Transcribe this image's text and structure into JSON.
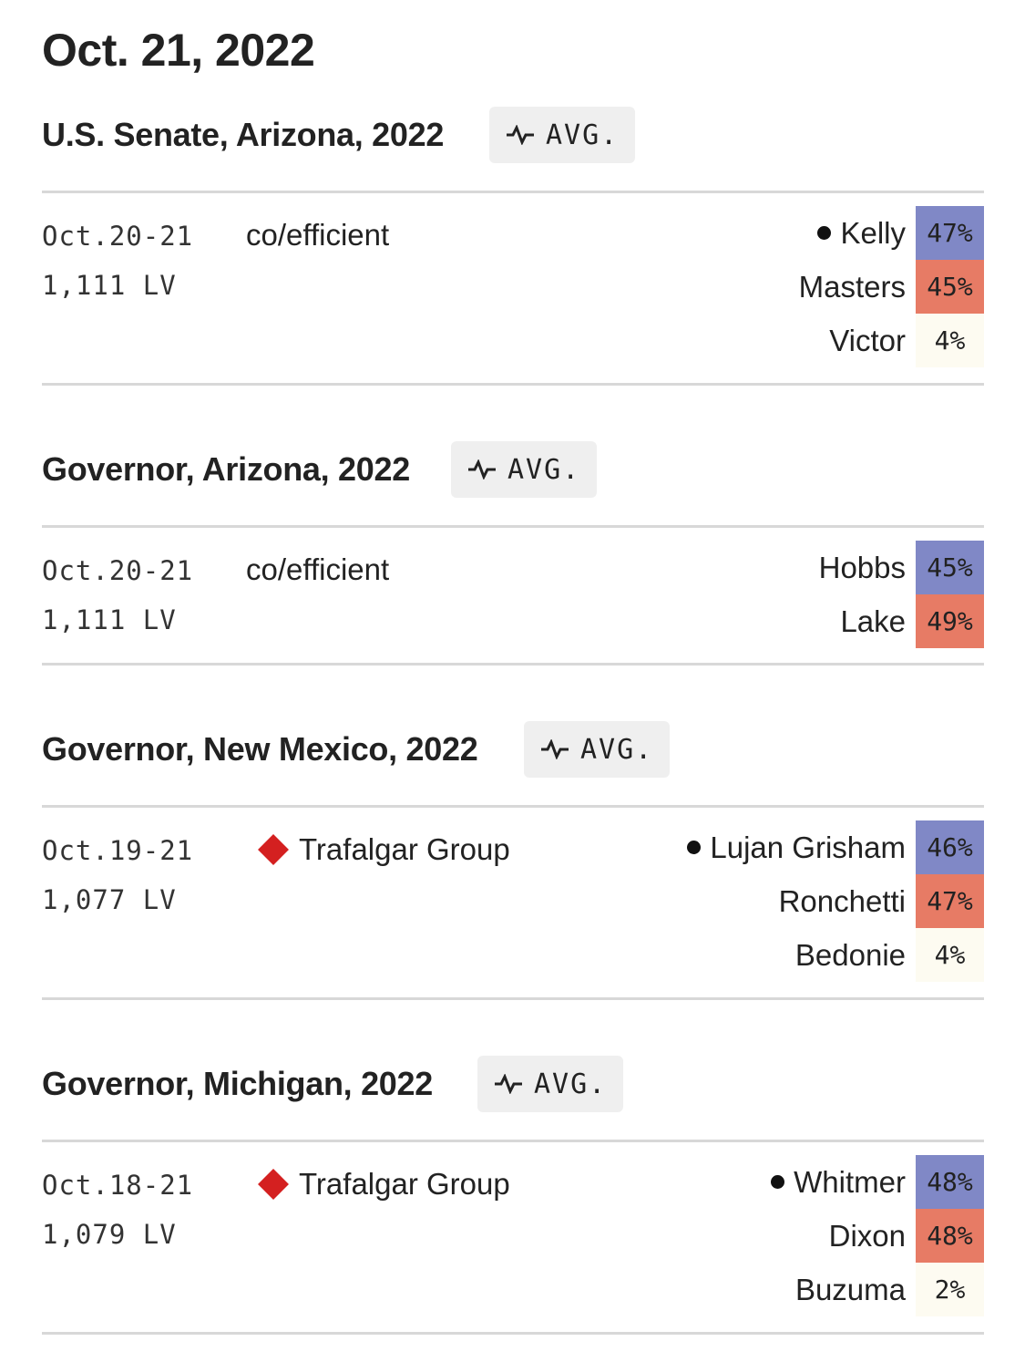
{
  "page": {
    "date": "Oct. 21, 2022"
  },
  "colors": {
    "dem": "#8088c6",
    "rep": "#e77b65",
    "other": "#fdfbf1",
    "pollster_grade": "#d42020"
  },
  "avg_label": "AVG.",
  "avg_icon": "trend-line-icon",
  "races": [
    {
      "title": "U.S. Senate, Arizona, 2022",
      "poll": {
        "dates": "Oct.20-21",
        "sample": "1,111 LV",
        "pollster": "co/efficient",
        "pollster_grade_icon": false,
        "results": [
          {
            "name": "Kelly",
            "pct": "47%",
            "party": "dem",
            "winner": true
          },
          {
            "name": "Masters",
            "pct": "45%",
            "party": "rep",
            "winner": false
          },
          {
            "name": "Victor",
            "pct": "4%",
            "party": "other",
            "winner": false
          }
        ]
      }
    },
    {
      "title": "Governor, Arizona, 2022",
      "poll": {
        "dates": "Oct.20-21",
        "sample": "1,111 LV",
        "pollster": "co/efficient",
        "pollster_grade_icon": false,
        "results": [
          {
            "name": "Hobbs",
            "pct": "45%",
            "party": "dem",
            "winner": false
          },
          {
            "name": "Lake",
            "pct": "49%",
            "party": "rep",
            "winner": false
          }
        ]
      }
    },
    {
      "title": "Governor, New Mexico, 2022",
      "poll": {
        "dates": "Oct.19-21",
        "sample": "1,077 LV",
        "pollster": "Trafalgar Group",
        "pollster_grade_icon": true,
        "results": [
          {
            "name": "Lujan Grisham",
            "pct": "46%",
            "party": "dem",
            "winner": true
          },
          {
            "name": "Ronchetti",
            "pct": "47%",
            "party": "rep",
            "winner": false
          },
          {
            "name": "Bedonie",
            "pct": "4%",
            "party": "other",
            "winner": false
          }
        ]
      }
    },
    {
      "title": "Governor, Michigan, 2022",
      "poll": {
        "dates": "Oct.18-21",
        "sample": "1,079 LV",
        "pollster": "Trafalgar Group",
        "pollster_grade_icon": true,
        "results": [
          {
            "name": "Whitmer",
            "pct": "48%",
            "party": "dem",
            "winner": true
          },
          {
            "name": "Dixon",
            "pct": "48%",
            "party": "rep",
            "winner": false
          },
          {
            "name": "Buzuma",
            "pct": "2%",
            "party": "other",
            "winner": false
          }
        ]
      }
    }
  ]
}
